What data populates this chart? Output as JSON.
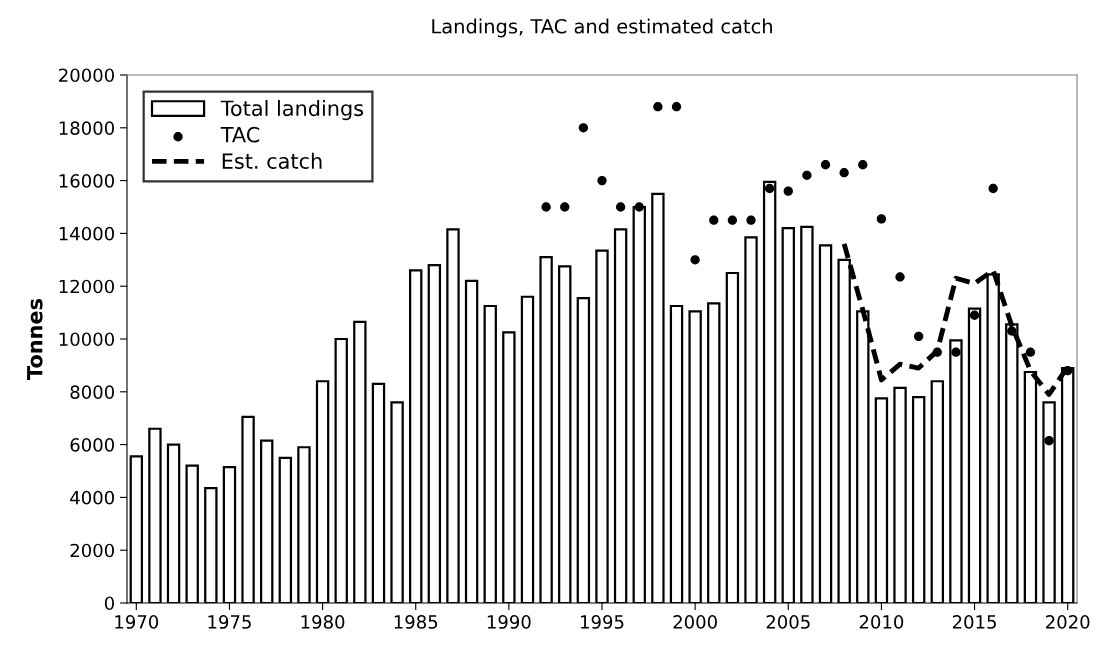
{
  "chart_data": {
    "type": "bar",
    "title": "Landings, TAC and estimated catch",
    "ylabel": "Tonnes",
    "x": [
      1970,
      1971,
      1972,
      1973,
      1974,
      1975,
      1976,
      1977,
      1978,
      1979,
      1980,
      1981,
      1982,
      1983,
      1984,
      1985,
      1986,
      1987,
      1988,
      1989,
      1990,
      1991,
      1992,
      1993,
      1994,
      1995,
      1996,
      1997,
      1998,
      1999,
      2000,
      2001,
      2002,
      2003,
      2004,
      2005,
      2006,
      2007,
      2008,
      2009,
      2010,
      2011,
      2012,
      2013,
      2014,
      2015,
      2016,
      2017,
      2018,
      2019,
      2020
    ],
    "series": [
      {
        "name": "Total landings",
        "color": "#ffffff",
        "values": [
          5550,
          6600,
          6000,
          5200,
          4350,
          5150,
          7050,
          6150,
          5500,
          5900,
          8400,
          10000,
          10650,
          8300,
          7600,
          12600,
          12800,
          14150,
          12200,
          11250,
          10250,
          11600,
          13100,
          12750,
          11550,
          13350,
          14150,
          15000,
          15500,
          11250,
          11050,
          11350,
          12500,
          13850,
          15950,
          14200,
          14250,
          13550,
          13000,
          11050,
          7750,
          8150,
          7800,
          8400,
          9950,
          11150,
          12450,
          10550,
          8750,
          7600,
          8900
        ]
      },
      {
        "name": "TAC",
        "type": "scatter",
        "color": "#000000",
        "marker": "circle",
        "values": [
          null,
          null,
          null,
          null,
          null,
          null,
          null,
          null,
          null,
          null,
          null,
          null,
          null,
          null,
          null,
          null,
          null,
          null,
          null,
          null,
          null,
          null,
          15000,
          15000,
          18000,
          16000,
          15000,
          15000,
          18800,
          18800,
          13000,
          14500,
          14500,
          14500,
          15700,
          15600,
          16200,
          16600,
          16300,
          16600,
          14550,
          12350,
          10100,
          9500,
          9500,
          10900,
          15700,
          10300,
          9500,
          6150,
          8800
        ]
      },
      {
        "name": "Est. catch",
        "type": "line",
        "color": "#000000",
        "line_style": "dashed",
        "values": [
          null,
          null,
          null,
          null,
          null,
          null,
          null,
          null,
          null,
          null,
          null,
          null,
          null,
          null,
          null,
          null,
          null,
          null,
          null,
          null,
          null,
          null,
          null,
          null,
          null,
          null,
          null,
          null,
          null,
          null,
          null,
          null,
          null,
          null,
          null,
          null,
          null,
          null,
          13600,
          11100,
          8450,
          9050,
          8900,
          9550,
          12300,
          12100,
          12600,
          10500,
          8800,
          7900,
          8950
        ]
      }
    ],
    "xlim": [
      1969.5,
      2020.5
    ],
    "xticks": [
      1970,
      1975,
      1980,
      1985,
      1990,
      1995,
      2000,
      2005,
      2010,
      2015,
      2020
    ],
    "ylim": [
      0,
      20000
    ],
    "yticks": [
      0,
      2000,
      4000,
      6000,
      8000,
      10000,
      12000,
      14000,
      16000,
      18000,
      20000
    ],
    "grid": false,
    "legend": "top left"
  }
}
